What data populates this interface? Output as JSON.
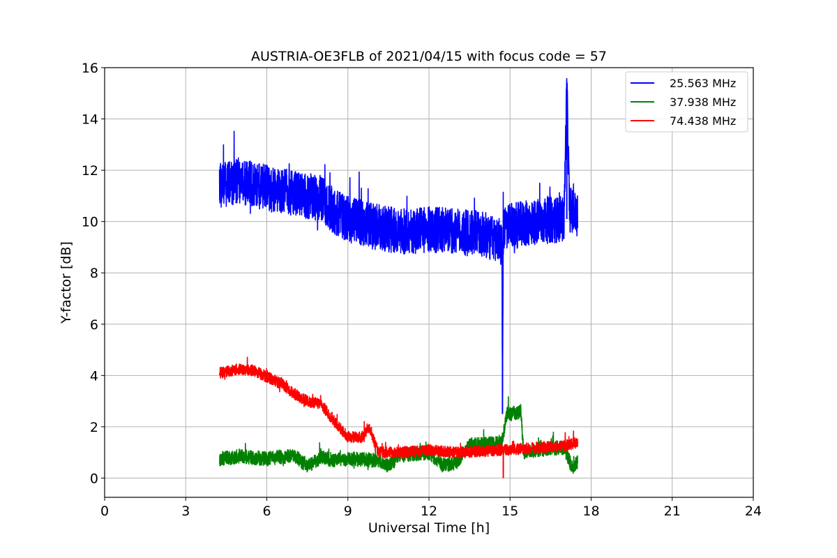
{
  "chart_data": {
    "type": "line",
    "title": "AUSTRIA-OE3FLB of 2021/04/15 with focus code = 57",
    "xlabel": "Universal Time [h]",
    "ylabel": "Y-factor [dB]",
    "xlim": [
      0,
      24
    ],
    "ylim": [
      -0.75,
      16
    ],
    "x_ticks": [
      "0",
      "3",
      "6",
      "9",
      "12",
      "15",
      "18",
      "21",
      "24"
    ],
    "y_ticks": [
      "0",
      "2",
      "4",
      "6",
      "8",
      "10",
      "12",
      "14",
      "16"
    ],
    "grid": true,
    "legend_position": "top-right",
    "series": [
      {
        "name": "25.563 MHz",
        "color": "#0000ff",
        "noise": 0.9,
        "x": [
          4.25,
          5,
          6,
          7,
          8,
          8.5,
          9,
          10,
          11,
          12,
          13,
          14,
          14.7,
          14.72,
          14.75,
          14.8,
          15,
          16,
          17,
          17.1,
          17.2,
          17.5
        ],
        "y": [
          11.4,
          11.6,
          11.3,
          11.1,
          10.9,
          10.4,
          10.1,
          9.8,
          9.6,
          9.7,
          9.6,
          9.5,
          9.2,
          2.5,
          9.6,
          9.7,
          9.8,
          10.0,
          10.1,
          15.3,
          10.5,
          10.2
        ]
      },
      {
        "name": "37.938 MHz",
        "color": "#008000",
        "noise": 0.28,
        "x": [
          4.25,
          5,
          6,
          7,
          7.5,
          8,
          8.5,
          9,
          10,
          10.5,
          11,
          12,
          12.5,
          13,
          13.5,
          14,
          14.7,
          14.9,
          15,
          15.4,
          15.5,
          16,
          17,
          17.3,
          17.5
        ],
        "y": [
          0.75,
          0.85,
          0.75,
          0.9,
          0.45,
          0.8,
          0.7,
          0.75,
          0.7,
          0.5,
          0.9,
          1.0,
          0.5,
          0.6,
          1.3,
          1.3,
          1.4,
          2.6,
          2.5,
          2.6,
          1.0,
          1.1,
          1.2,
          0.4,
          0.6
        ]
      },
      {
        "name": "74.438 MHz",
        "color": "#ff0000",
        "noise": 0.22,
        "x": [
          4.25,
          5,
          5.5,
          6,
          6.5,
          7,
          7.5,
          8,
          8.5,
          9,
          9.5,
          9.8,
          10.1,
          11,
          12,
          13,
          14,
          14.75,
          15,
          16,
          17,
          17.5
        ],
        "y": [
          4.1,
          4.25,
          4.2,
          3.95,
          3.7,
          3.3,
          3.0,
          2.9,
          2.2,
          1.6,
          1.6,
          2.0,
          1.0,
          1.0,
          1.1,
          1.0,
          1.05,
          1.1,
          1.1,
          1.2,
          1.25,
          1.4
        ]
      }
    ]
  }
}
